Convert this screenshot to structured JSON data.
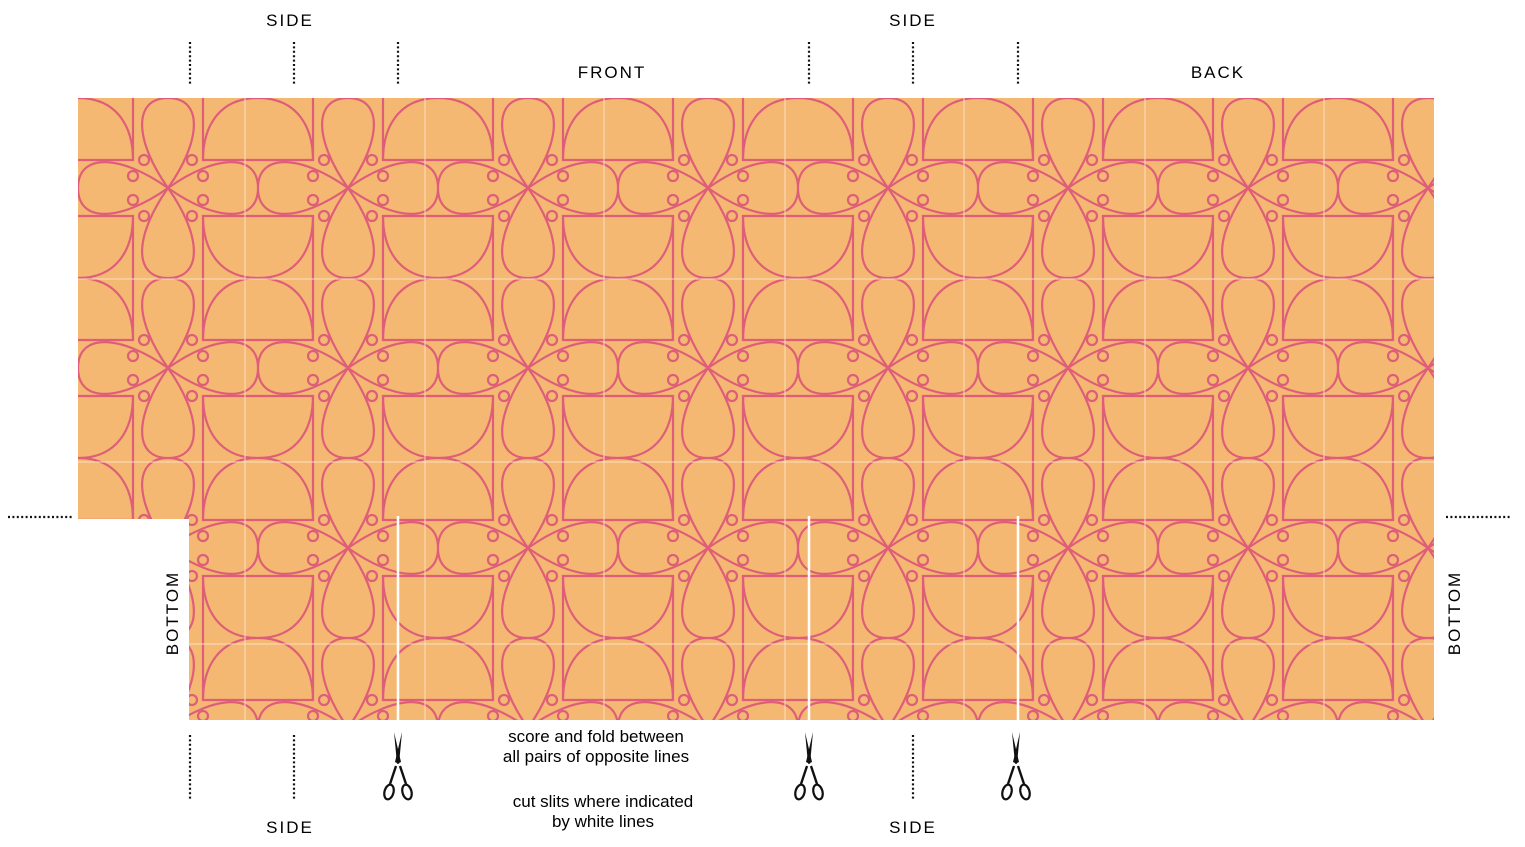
{
  "labels": {
    "side_top_left": "SIDE",
    "side_top_right": "SIDE",
    "front": "FRONT",
    "back": "BACK",
    "bottom_left": "BOTTOM",
    "bottom_right": "BOTTOM",
    "side_bottom_left": "SIDE",
    "side_bottom_right": "SIDE"
  },
  "instructions": {
    "score_line1": "score and fold between",
    "score_line2": "all pairs of opposite lines",
    "cut_line1": "cut slits where indicated",
    "cut_line2": "by white lines"
  },
  "icons": {
    "scissors": "scissors-icon",
    "fold_mark": "dotted-fold-line",
    "pattern": "ornamental-tile-pattern"
  },
  "colors": {
    "paper": "#F5B872",
    "pattern": "#DE5E7A",
    "cut_line": "#FFFFFF",
    "grid_line": "#FCE6CC",
    "ink": "#000000"
  }
}
